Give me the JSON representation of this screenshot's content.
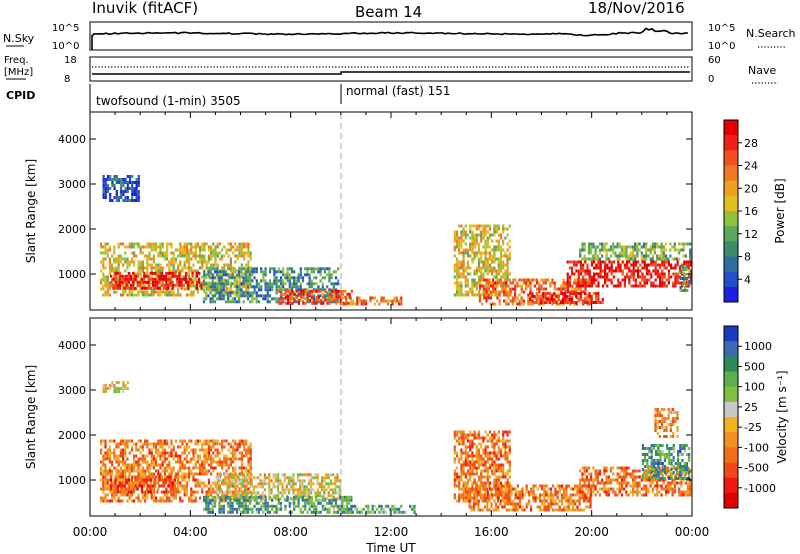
{
  "header": {
    "station": "Inuvik (fitACF)",
    "beam": "Beam 14",
    "date": "18/Nov/2016"
  },
  "summary_panels": {
    "nsky": {
      "left_label": "N.Sky",
      "left_ticks": [
        "10^5",
        "10^0"
      ],
      "right_label": "N.Search",
      "right_ticks": [
        "10^5",
        "10^0"
      ]
    },
    "freq": {
      "left_label_top": "Freq.",
      "left_label_bottom": "[MHz]",
      "left_ticks": [
        "18",
        "8"
      ],
      "right_label": "Nave",
      "right_ticks": [
        "60",
        "0"
      ]
    },
    "cpid": {
      "label": "CPID",
      "modes": [
        {
          "name": "twofsound (1-min) 3505",
          "start_hour": 0
        },
        {
          "name": "normal (fast) 151",
          "start_hour": 10
        }
      ]
    }
  },
  "x_axis": {
    "label": "Time UT",
    "ticks": [
      "00:00",
      "04:00",
      "08:00",
      "12:00",
      "16:00",
      "20:00",
      "00:00"
    ],
    "range_hours": [
      0,
      24
    ]
  },
  "chart_data": [
    {
      "type": "heatmap",
      "name": "power",
      "ylabel": "Slant Range [km]",
      "yticks": [
        "1000",
        "2000",
        "3000",
        "4000"
      ],
      "ylim": [
        200,
        4600
      ],
      "xlim": [
        0,
        24
      ],
      "colorbar": {
        "label": "Power [dB]",
        "ticks": [
          "4",
          "8",
          "12",
          "16",
          "20",
          "24",
          "28"
        ],
        "range": [
          0,
          32
        ],
        "colors": [
          "#1e20e0",
          "#2250c8",
          "#2e6f9e",
          "#3f8a6a",
          "#5aa85a",
          "#92c23a",
          "#e0c020",
          "#f0a020",
          "#f07820",
          "#f05020",
          "#f02018",
          "#e80000"
        ]
      },
      "patches": [
        {
          "t0": 0.4,
          "t1": 6.5,
          "r0": 500,
          "r1": 1700,
          "level": 0.55
        },
        {
          "t0": 0.8,
          "t1": 4.5,
          "r0": 650,
          "r1": 1050,
          "level": 0.92
        },
        {
          "t0": 4.5,
          "t1": 10.0,
          "r0": 350,
          "r1": 1150,
          "level": 0.3
        },
        {
          "t0": 7.5,
          "t1": 10.5,
          "r0": 300,
          "r1": 650,
          "level": 0.8
        },
        {
          "t0": 0.5,
          "t1": 2.0,
          "r0": 2600,
          "r1": 3200,
          "level": 0.12
        },
        {
          "t0": 10.0,
          "t1": 12.5,
          "r0": 250,
          "r1": 500,
          "level": 0.7
        },
        {
          "t0": 14.5,
          "t1": 16.8,
          "r0": 500,
          "r1": 2100,
          "level": 0.55
        },
        {
          "t0": 15.5,
          "t1": 20.0,
          "r0": 300,
          "r1": 900,
          "level": 0.75
        },
        {
          "t0": 17.5,
          "t1": 20.5,
          "r0": 300,
          "r1": 600,
          "level": 0.88
        },
        {
          "t0": 19.0,
          "t1": 24.0,
          "r0": 700,
          "r1": 1300,
          "level": 0.93
        },
        {
          "t0": 19.5,
          "t1": 24.0,
          "r0": 1300,
          "r1": 1700,
          "level": 0.4
        },
        {
          "t0": 23.5,
          "t1": 24.0,
          "r0": 600,
          "r1": 1200,
          "level": 0.3
        }
      ]
    },
    {
      "type": "heatmap",
      "name": "velocity",
      "ylabel": "Slant Range [km]",
      "yticks": [
        "1000",
        "2000",
        "3000",
        "4000"
      ],
      "ylim": [
        200,
        4600
      ],
      "xlim": [
        0,
        24
      ],
      "colorbar": {
        "label": "Velocity [m s⁻¹]",
        "ticks": [
          "1000",
          "500",
          "100",
          "25",
          "-25",
          "-100",
          "-500",
          "-1000"
        ],
        "colors": [
          "#1a3cc0",
          "#3a6ab0",
          "#2d8a5a",
          "#5ab04a",
          "#80c040",
          "#c8c8c8",
          "#f0b020",
          "#f09020",
          "#f07018",
          "#f04818",
          "#f01810",
          "#e00000"
        ]
      },
      "patches": [
        {
          "t0": 0.4,
          "t1": 6.5,
          "r0": 500,
          "r1": 1900,
          "level": 0.68
        },
        {
          "t0": 0.8,
          "t1": 3.5,
          "r0": 700,
          "r1": 1100,
          "level": 0.78
        },
        {
          "t0": 0.5,
          "t1": 1.6,
          "r0": 2900,
          "r1": 3200,
          "level": 0.5
        },
        {
          "t0": 5.0,
          "t1": 10.0,
          "r0": 500,
          "r1": 1150,
          "level": 0.5
        },
        {
          "t0": 4.5,
          "t1": 10.5,
          "r0": 250,
          "r1": 650,
          "level": 0.25
        },
        {
          "t0": 10.0,
          "t1": 13.0,
          "r0": 250,
          "r1": 450,
          "level": 0.3
        },
        {
          "t0": 14.5,
          "t1": 16.8,
          "r0": 500,
          "r1": 2100,
          "level": 0.7
        },
        {
          "t0": 15.0,
          "t1": 20.0,
          "r0": 300,
          "r1": 900,
          "level": 0.68
        },
        {
          "t0": 19.5,
          "t1": 24.0,
          "r0": 600,
          "r1": 1300,
          "level": 0.7
        },
        {
          "t0": 22.0,
          "t1": 24.0,
          "r0": 1000,
          "r1": 1800,
          "level": 0.25
        },
        {
          "t0": 22.5,
          "t1": 23.5,
          "r0": 1900,
          "r1": 2600,
          "level": 0.65
        }
      ]
    }
  ]
}
